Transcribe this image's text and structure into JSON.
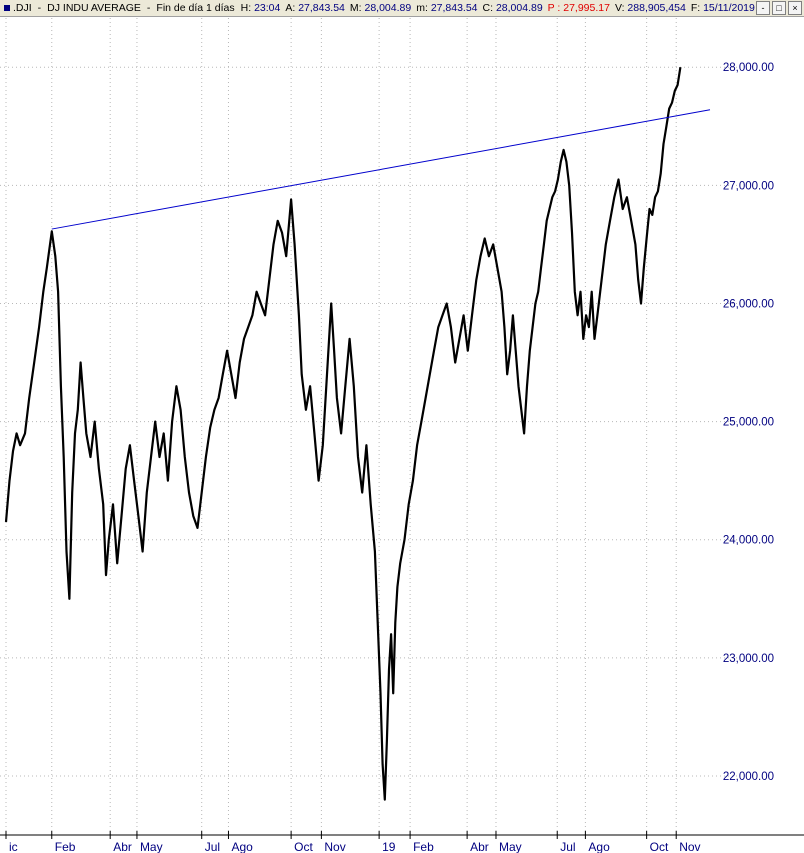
{
  "header": {
    "symbol": ".DJI",
    "name": "DJ INDU AVERAGE",
    "period": "Fin de día 1 días",
    "fields": [
      {
        "key": "H:",
        "value": "23:04",
        "name": "header-time"
      },
      {
        "key": "A:",
        "value": "27,843.54",
        "name": "header-open"
      },
      {
        "key": "M:",
        "value": "28,004.89",
        "name": "header-high"
      },
      {
        "key": "m:",
        "value": "27,843.54",
        "name": "header-low"
      },
      {
        "key": "C:",
        "value": "28,004.89",
        "name": "header-close"
      },
      {
        "key": "P :",
        "value": "27,995.17",
        "name": "header-last",
        "red": true
      },
      {
        "key": "V:",
        "value": "288,905,454",
        "name": "header-volume"
      },
      {
        "key": "F:",
        "value": "15/11/2019",
        "name": "header-date"
      }
    ],
    "buttons": [
      "-",
      "□",
      "×"
    ]
  },
  "chart_data": {
    "type": "line",
    "ylim": [
      21500,
      28400
    ],
    "yticks": [
      22000,
      23000,
      24000,
      25000,
      26000,
      27000,
      28000
    ],
    "ytick_labels": [
      "22,000.00",
      "23,000.00",
      "24,000.00",
      "25,000.00",
      "26,000.00",
      "27,000.00",
      "28,000.00"
    ],
    "x_labels": [
      {
        "label": "ic",
        "x": 0
      },
      {
        "label": "Feb",
        "x": 0.065
      },
      {
        "label": "Abr",
        "x": 0.148
      },
      {
        "label": "May",
        "x": 0.186
      },
      {
        "label": "Jul",
        "x": 0.278
      },
      {
        "label": "Ago",
        "x": 0.316
      },
      {
        "label": "Oct",
        "x": 0.405
      },
      {
        "label": "Nov",
        "x": 0.448
      },
      {
        "label": "19",
        "x": 0.53
      },
      {
        "label": "Feb",
        "x": 0.574
      },
      {
        "label": "Abr",
        "x": 0.655
      },
      {
        "label": "May",
        "x": 0.696
      },
      {
        "label": "Jul",
        "x": 0.783
      },
      {
        "label": "Ago",
        "x": 0.823
      },
      {
        "label": "Oct",
        "x": 0.91
      },
      {
        "label": "Nov",
        "x": 0.952
      }
    ],
    "series": [
      {
        "points": [
          [
            0,
            24150
          ],
          [
            0.005,
            24500
          ],
          [
            0.01,
            24750
          ],
          [
            0.015,
            24900
          ],
          [
            0.02,
            24800
          ],
          [
            0.027,
            24900
          ],
          [
            0.033,
            25200
          ],
          [
            0.04,
            25500
          ],
          [
            0.047,
            25800
          ],
          [
            0.053,
            26100
          ],
          [
            0.058,
            26300
          ],
          [
            0.065,
            26610
          ],
          [
            0.07,
            26400
          ],
          [
            0.074,
            26100
          ],
          [
            0.078,
            25300
          ],
          [
            0.082,
            24700
          ],
          [
            0.086,
            23900
          ],
          [
            0.09,
            23500
          ],
          [
            0.094,
            24400
          ],
          [
            0.098,
            24900
          ],
          [
            0.102,
            25100
          ],
          [
            0.106,
            25500
          ],
          [
            0.11,
            25200
          ],
          [
            0.114,
            24900
          ],
          [
            0.12,
            24700
          ],
          [
            0.126,
            25000
          ],
          [
            0.132,
            24600
          ],
          [
            0.138,
            24300
          ],
          [
            0.142,
            23700
          ],
          [
            0.146,
            24000
          ],
          [
            0.152,
            24300
          ],
          [
            0.158,
            23800
          ],
          [
            0.164,
            24200
          ],
          [
            0.17,
            24600
          ],
          [
            0.176,
            24800
          ],
          [
            0.182,
            24500
          ],
          [
            0.188,
            24200
          ],
          [
            0.194,
            23900
          ],
          [
            0.2,
            24400
          ],
          [
            0.206,
            24700
          ],
          [
            0.212,
            25000
          ],
          [
            0.218,
            24700
          ],
          [
            0.224,
            24900
          ],
          [
            0.23,
            24500
          ],
          [
            0.236,
            25000
          ],
          [
            0.242,
            25300
          ],
          [
            0.248,
            25100
          ],
          [
            0.254,
            24700
          ],
          [
            0.26,
            24400
          ],
          [
            0.266,
            24200
          ],
          [
            0.272,
            24100
          ],
          [
            0.278,
            24400
          ],
          [
            0.284,
            24700
          ],
          [
            0.29,
            24950
          ],
          [
            0.296,
            25100
          ],
          [
            0.302,
            25200
          ],
          [
            0.308,
            25400
          ],
          [
            0.314,
            25600
          ],
          [
            0.32,
            25400
          ],
          [
            0.326,
            25200
          ],
          [
            0.332,
            25500
          ],
          [
            0.338,
            25700
          ],
          [
            0.344,
            25800
          ],
          [
            0.35,
            25900
          ],
          [
            0.356,
            26100
          ],
          [
            0.362,
            26000
          ],
          [
            0.368,
            25900
          ],
          [
            0.374,
            26200
          ],
          [
            0.38,
            26500
          ],
          [
            0.386,
            26700
          ],
          [
            0.392,
            26600
          ],
          [
            0.398,
            26400
          ],
          [
            0.405,
            26880
          ],
          [
            0.41,
            26500
          ],
          [
            0.416,
            25900
          ],
          [
            0.42,
            25400
          ],
          [
            0.426,
            25100
          ],
          [
            0.432,
            25300
          ],
          [
            0.438,
            24900
          ],
          [
            0.444,
            24500
          ],
          [
            0.45,
            24800
          ],
          [
            0.456,
            25400
          ],
          [
            0.462,
            26000
          ],
          [
            0.466,
            25600
          ],
          [
            0.47,
            25200
          ],
          [
            0.476,
            24900
          ],
          [
            0.482,
            25300
          ],
          [
            0.488,
            25700
          ],
          [
            0.494,
            25300
          ],
          [
            0.5,
            24700
          ],
          [
            0.506,
            24400
          ],
          [
            0.512,
            24800
          ],
          [
            0.518,
            24300
          ],
          [
            0.524,
            23900
          ],
          [
            0.528,
            23300
          ],
          [
            0.532,
            22700
          ],
          [
            0.535,
            22100
          ],
          [
            0.538,
            21800
          ],
          [
            0.541,
            22300
          ],
          [
            0.544,
            22900
          ],
          [
            0.547,
            23200
          ],
          [
            0.55,
            22700
          ],
          [
            0.553,
            23300
          ],
          [
            0.556,
            23600
          ],
          [
            0.56,
            23800
          ],
          [
            0.566,
            24000
          ],
          [
            0.572,
            24300
          ],
          [
            0.578,
            24500
          ],
          [
            0.584,
            24800
          ],
          [
            0.59,
            25000
          ],
          [
            0.596,
            25200
          ],
          [
            0.602,
            25400
          ],
          [
            0.608,
            25600
          ],
          [
            0.614,
            25800
          ],
          [
            0.62,
            25900
          ],
          [
            0.626,
            26000
          ],
          [
            0.632,
            25800
          ],
          [
            0.638,
            25500
          ],
          [
            0.644,
            25700
          ],
          [
            0.65,
            25900
          ],
          [
            0.656,
            25600
          ],
          [
            0.662,
            25900
          ],
          [
            0.668,
            26200
          ],
          [
            0.674,
            26400
          ],
          [
            0.68,
            26550
          ],
          [
            0.686,
            26400
          ],
          [
            0.692,
            26500
          ],
          [
            0.698,
            26300
          ],
          [
            0.704,
            26100
          ],
          [
            0.708,
            25800
          ],
          [
            0.712,
            25400
          ],
          [
            0.716,
            25600
          ],
          [
            0.72,
            25900
          ],
          [
            0.724,
            25600
          ],
          [
            0.728,
            25300
          ],
          [
            0.732,
            25100
          ],
          [
            0.736,
            24900
          ],
          [
            0.74,
            25300
          ],
          [
            0.744,
            25600
          ],
          [
            0.748,
            25800
          ],
          [
            0.752,
            26000
          ],
          [
            0.756,
            26100
          ],
          [
            0.76,
            26300
          ],
          [
            0.764,
            26500
          ],
          [
            0.768,
            26700
          ],
          [
            0.772,
            26800
          ],
          [
            0.776,
            26900
          ],
          [
            0.78,
            26950
          ],
          [
            0.784,
            27050
          ],
          [
            0.788,
            27200
          ],
          [
            0.792,
            27300
          ],
          [
            0.796,
            27200
          ],
          [
            0.8,
            27000
          ],
          [
            0.804,
            26600
          ],
          [
            0.808,
            26100
          ],
          [
            0.812,
            25900
          ],
          [
            0.816,
            26100
          ],
          [
            0.82,
            25700
          ],
          [
            0.824,
            25900
          ],
          [
            0.828,
            25800
          ],
          [
            0.832,
            26100
          ],
          [
            0.836,
            25700
          ],
          [
            0.84,
            25900
          ],
          [
            0.846,
            26200
          ],
          [
            0.852,
            26500
          ],
          [
            0.858,
            26700
          ],
          [
            0.864,
            26900
          ],
          [
            0.87,
            27050
          ],
          [
            0.876,
            26800
          ],
          [
            0.882,
            26900
          ],
          [
            0.888,
            26700
          ],
          [
            0.894,
            26500
          ],
          [
            0.898,
            26200
          ],
          [
            0.902,
            26000
          ],
          [
            0.906,
            26300
          ],
          [
            0.91,
            26550
          ],
          [
            0.914,
            26800
          ],
          [
            0.918,
            26750
          ],
          [
            0.922,
            26900
          ],
          [
            0.926,
            26950
          ],
          [
            0.93,
            27100
          ],
          [
            0.934,
            27350
          ],
          [
            0.938,
            27500
          ],
          [
            0.942,
            27650
          ],
          [
            0.946,
            27700
          ],
          [
            0.95,
            27800
          ],
          [
            0.954,
            27850
          ],
          [
            0.958,
            28000
          ]
        ]
      }
    ],
    "trendline": [
      [
        0.065,
        26630
      ],
      [
        1,
        27640
      ]
    ]
  }
}
